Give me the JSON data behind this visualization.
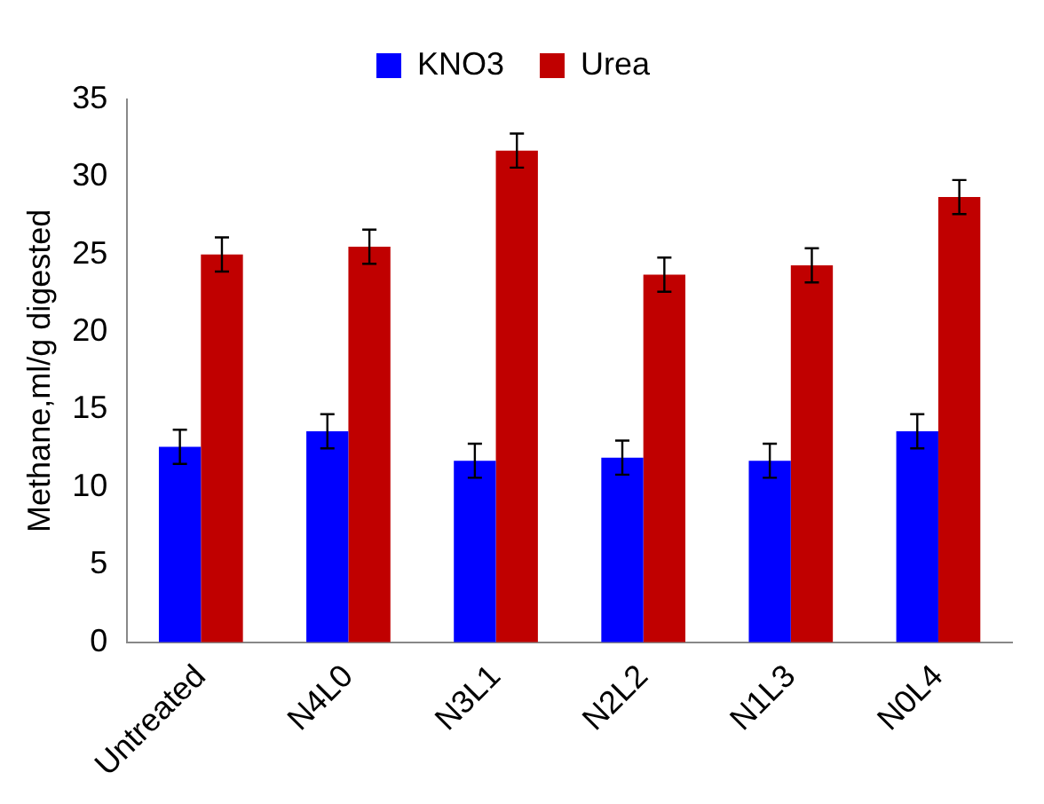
{
  "chart_data": {
    "type": "bar",
    "ylabel": "Methane,ml/g digested",
    "categories": [
      "Untreated",
      "N4L0",
      "N3L1",
      "N2L2",
      "N1L3",
      "N0L4"
    ],
    "series": [
      {
        "name": "KNO3",
        "color": "#0000ff",
        "values": [
          12.6,
          13.6,
          11.7,
          11.9,
          11.7,
          13.6
        ],
        "errors": [
          1.1,
          1.1,
          1.1,
          1.1,
          1.1,
          1.1
        ]
      },
      {
        "name": "Urea",
        "color": "#c00000",
        "values": [
          25.0,
          25.5,
          31.7,
          23.7,
          24.3,
          28.7
        ],
        "errors": [
          1.1,
          1.1,
          1.1,
          1.1,
          1.1,
          1.1
        ]
      }
    ],
    "ylim": [
      0,
      35
    ],
    "yticks": [
      0,
      5,
      10,
      15,
      20,
      25,
      30,
      35
    ],
    "grid": false,
    "legend": "top"
  }
}
